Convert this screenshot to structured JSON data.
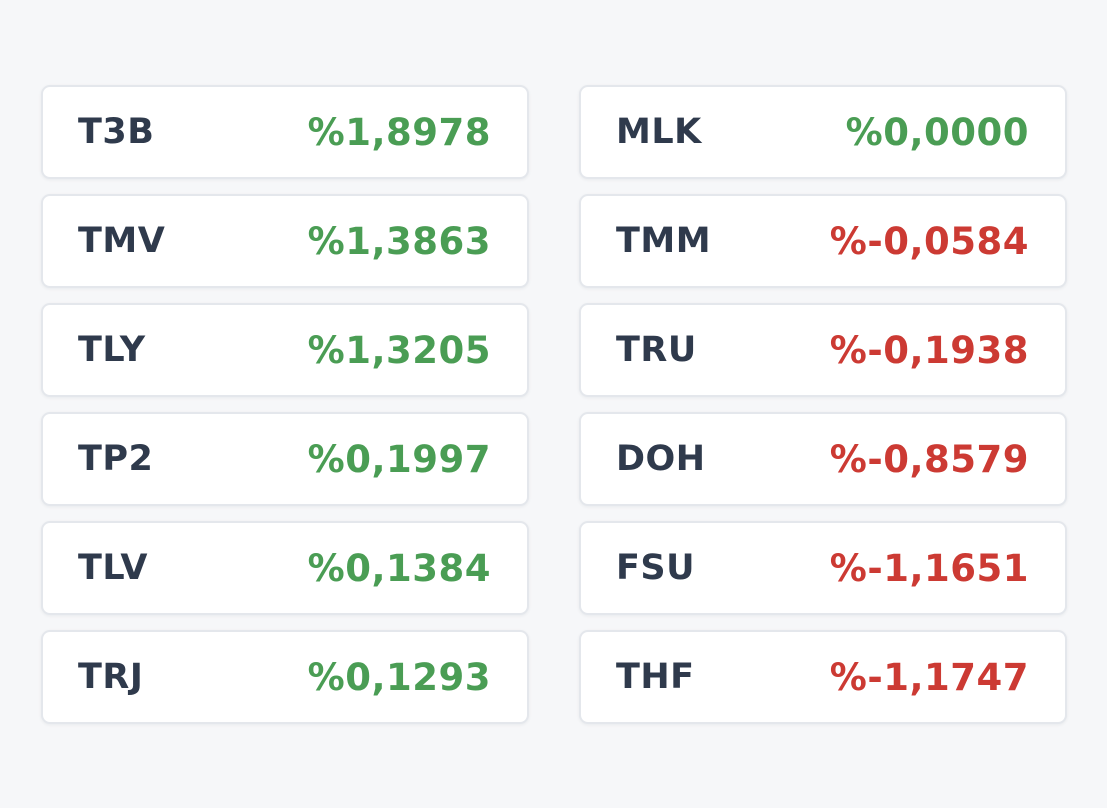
{
  "colors": {
    "positive": "#4a9d54",
    "negative": "#cc3a33",
    "code_text": "#2f3a4c",
    "card_bg": "#ffffff",
    "page_bg": "#f6f7f9"
  },
  "gainers": [
    {
      "code": "T3B",
      "change": "%1,8978"
    },
    {
      "code": "TMV",
      "change": "%1,3863"
    },
    {
      "code": "TLY",
      "change": "%1,3205"
    },
    {
      "code": "TP2",
      "change": "%0,1997"
    },
    {
      "code": "TLV",
      "change": "%0,1384"
    },
    {
      "code": "TRJ",
      "change": "%0,1293"
    }
  ],
  "losers": [
    {
      "code": "MLK",
      "change": "%0,0000",
      "direction": "positive"
    },
    {
      "code": "TMM",
      "change": "%-0,0584",
      "direction": "negative"
    },
    {
      "code": "TRU",
      "change": "%-0,1938",
      "direction": "negative"
    },
    {
      "code": "DOH",
      "change": "%-0,8579",
      "direction": "negative"
    },
    {
      "code": "FSU",
      "change": "%-1,1651",
      "direction": "negative"
    },
    {
      "code": "THF",
      "change": "%-1,1747",
      "direction": "negative"
    }
  ]
}
